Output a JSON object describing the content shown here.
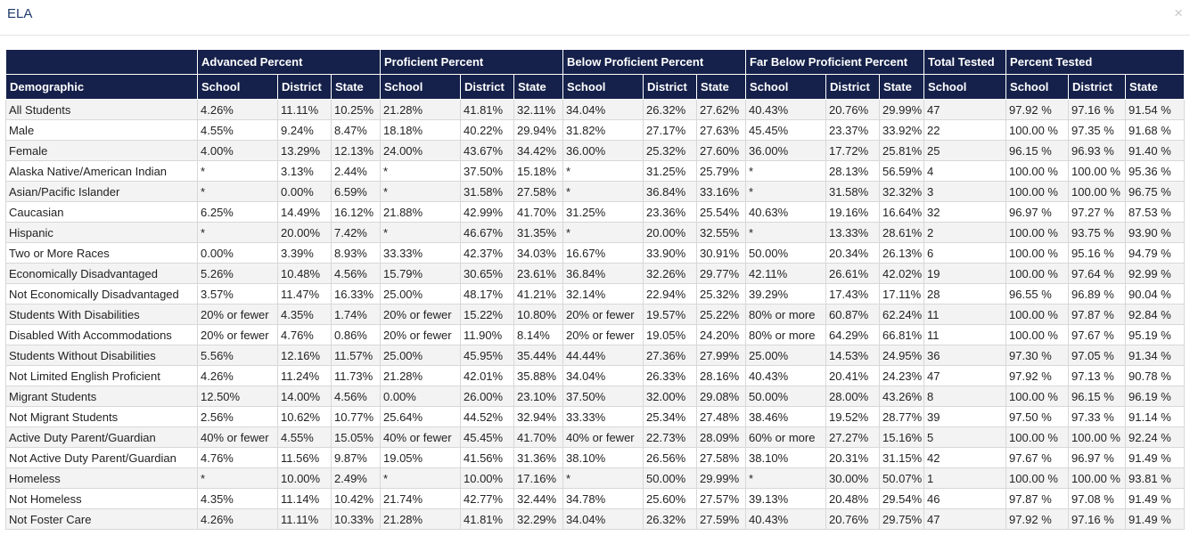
{
  "modal": {
    "title": "ELA",
    "close_glyph": "×"
  },
  "table": {
    "group_headers": [
      "Advanced Percent",
      "Proficient Percent",
      "Below Proficient Percent",
      "Far Below Proficient Percent",
      "Total Tested",
      "Percent Tested"
    ],
    "sub_headers": [
      "Demographic",
      "School",
      "District",
      "State",
      "School",
      "District",
      "State",
      "School",
      "District",
      "State",
      "School",
      "District",
      "State",
      "School",
      "School",
      "District",
      "State"
    ],
    "rows": [
      [
        "All Students",
        "4.26%",
        "11.11%",
        "10.25%",
        "21.28%",
        "41.81%",
        "32.11%",
        "34.04%",
        "26.32%",
        "27.62%",
        "40.43%",
        "20.76%",
        "29.99%",
        "47",
        "97.92 %",
        "97.16 %",
        "91.54 %"
      ],
      [
        "Male",
        "4.55%",
        "9.24%",
        "8.47%",
        "18.18%",
        "40.22%",
        "29.94%",
        "31.82%",
        "27.17%",
        "27.63%",
        "45.45%",
        "23.37%",
        "33.92%",
        "22",
        "100.00 %",
        "97.35 %",
        "91.68 %"
      ],
      [
        "Female",
        "4.00%",
        "13.29%",
        "12.13%",
        "24.00%",
        "43.67%",
        "34.42%",
        "36.00%",
        "25.32%",
        "27.60%",
        "36.00%",
        "17.72%",
        "25.81%",
        "25",
        "96.15 %",
        "96.93 %",
        "91.40 %"
      ],
      [
        "Alaska Native/American Indian",
        "*",
        "3.13%",
        "2.44%",
        "*",
        "37.50%",
        "15.18%",
        "*",
        "31.25%",
        "25.79%",
        "*",
        "28.13%",
        "56.59%",
        "4",
        "100.00 %",
        "100.00 %",
        "95.36 %"
      ],
      [
        "Asian/Pacific Islander",
        "*",
        "0.00%",
        "6.59%",
        "*",
        "31.58%",
        "27.58%",
        "*",
        "36.84%",
        "33.16%",
        "*",
        "31.58%",
        "32.32%",
        "3",
        "100.00 %",
        "100.00 %",
        "96.75 %"
      ],
      [
        "Caucasian",
        "6.25%",
        "14.49%",
        "16.12%",
        "21.88%",
        "42.99%",
        "41.70%",
        "31.25%",
        "23.36%",
        "25.54%",
        "40.63%",
        "19.16%",
        "16.64%",
        "32",
        "96.97 %",
        "97.27 %",
        "87.53 %"
      ],
      [
        "Hispanic",
        "*",
        "20.00%",
        "7.42%",
        "*",
        "46.67%",
        "31.35%",
        "*",
        "20.00%",
        "32.55%",
        "*",
        "13.33%",
        "28.61%",
        "2",
        "100.00 %",
        "93.75 %",
        "93.90 %"
      ],
      [
        "Two or More Races",
        "0.00%",
        "3.39%",
        "8.93%",
        "33.33%",
        "42.37%",
        "34.03%",
        "16.67%",
        "33.90%",
        "30.91%",
        "50.00%",
        "20.34%",
        "26.13%",
        "6",
        "100.00 %",
        "95.16 %",
        "94.79 %"
      ],
      [
        "Economically Disadvantaged",
        "5.26%",
        "10.48%",
        "4.56%",
        "15.79%",
        "30.65%",
        "23.61%",
        "36.84%",
        "32.26%",
        "29.77%",
        "42.11%",
        "26.61%",
        "42.02%",
        "19",
        "100.00 %",
        "97.64 %",
        "92.99 %"
      ],
      [
        "Not Economically Disadvantaged",
        "3.57%",
        "11.47%",
        "16.33%",
        "25.00%",
        "48.17%",
        "41.21%",
        "32.14%",
        "22.94%",
        "25.32%",
        "39.29%",
        "17.43%",
        "17.11%",
        "28",
        "96.55 %",
        "96.89 %",
        "90.04 %"
      ],
      [
        "Students With Disabilities",
        "20% or fewer",
        "4.35%",
        "1.74%",
        "20% or fewer",
        "15.22%",
        "10.80%",
        "20% or fewer",
        "19.57%",
        "25.22%",
        "80% or more",
        "60.87%",
        "62.24%",
        "11",
        "100.00 %",
        "97.87 %",
        "92.84 %"
      ],
      [
        "Disabled With Accommodations",
        "20% or fewer",
        "4.76%",
        "0.86%",
        "20% or fewer",
        "11.90%",
        "8.14%",
        "20% or fewer",
        "19.05%",
        "24.20%",
        "80% or more",
        "64.29%",
        "66.81%",
        "11",
        "100.00 %",
        "97.67 %",
        "95.19 %"
      ],
      [
        "Students Without Disabilities",
        "5.56%",
        "12.16%",
        "11.57%",
        "25.00%",
        "45.95%",
        "35.44%",
        "44.44%",
        "27.36%",
        "27.99%",
        "25.00%",
        "14.53%",
        "24.95%",
        "36",
        "97.30 %",
        "97.05 %",
        "91.34 %"
      ],
      [
        "Not Limited English Proficient",
        "4.26%",
        "11.24%",
        "11.73%",
        "21.28%",
        "42.01%",
        "35.88%",
        "34.04%",
        "26.33%",
        "28.16%",
        "40.43%",
        "20.41%",
        "24.23%",
        "47",
        "97.92 %",
        "97.13 %",
        "90.78 %"
      ],
      [
        "Migrant Students",
        "12.50%",
        "14.00%",
        "4.56%",
        "0.00%",
        "26.00%",
        "23.10%",
        "37.50%",
        "32.00%",
        "29.08%",
        "50.00%",
        "28.00%",
        "43.26%",
        "8",
        "100.00 %",
        "96.15 %",
        "96.19 %"
      ],
      [
        "Not Migrant Students",
        "2.56%",
        "10.62%",
        "10.77%",
        "25.64%",
        "44.52%",
        "32.94%",
        "33.33%",
        "25.34%",
        "27.48%",
        "38.46%",
        "19.52%",
        "28.77%",
        "39",
        "97.50 %",
        "97.33 %",
        "91.14 %"
      ],
      [
        "Active Duty Parent/Guardian",
        "40% or fewer",
        "4.55%",
        "15.05%",
        "40% or fewer",
        "45.45%",
        "41.70%",
        "40% or fewer",
        "22.73%",
        "28.09%",
        "60% or more",
        "27.27%",
        "15.16%",
        "5",
        "100.00 %",
        "100.00 %",
        "92.24 %"
      ],
      [
        "Not Active Duty Parent/Guardian",
        "4.76%",
        "11.56%",
        "9.87%",
        "19.05%",
        "41.56%",
        "31.36%",
        "38.10%",
        "26.56%",
        "27.58%",
        "38.10%",
        "20.31%",
        "31.15%",
        "42",
        "97.67 %",
        "96.97 %",
        "91.49 %"
      ],
      [
        "Homeless",
        "*",
        "10.00%",
        "2.49%",
        "*",
        "10.00%",
        "17.16%",
        "*",
        "50.00%",
        "29.99%",
        "*",
        "30.00%",
        "50.07%",
        "1",
        "100.00 %",
        "100.00 %",
        "93.81 %"
      ],
      [
        "Not Homeless",
        "4.35%",
        "11.14%",
        "10.42%",
        "21.74%",
        "42.77%",
        "32.44%",
        "34.78%",
        "25.60%",
        "27.57%",
        "39.13%",
        "20.48%",
        "29.54%",
        "46",
        "97.87 %",
        "97.08 %",
        "91.49 %"
      ],
      [
        "Not Foster Care",
        "4.26%",
        "11.11%",
        "10.33%",
        "21.28%",
        "41.81%",
        "32.29%",
        "34.04%",
        "26.32%",
        "27.59%",
        "40.43%",
        "20.76%",
        "29.75%",
        "47",
        "97.92 %",
        "97.16 %",
        "91.49 %"
      ]
    ]
  }
}
